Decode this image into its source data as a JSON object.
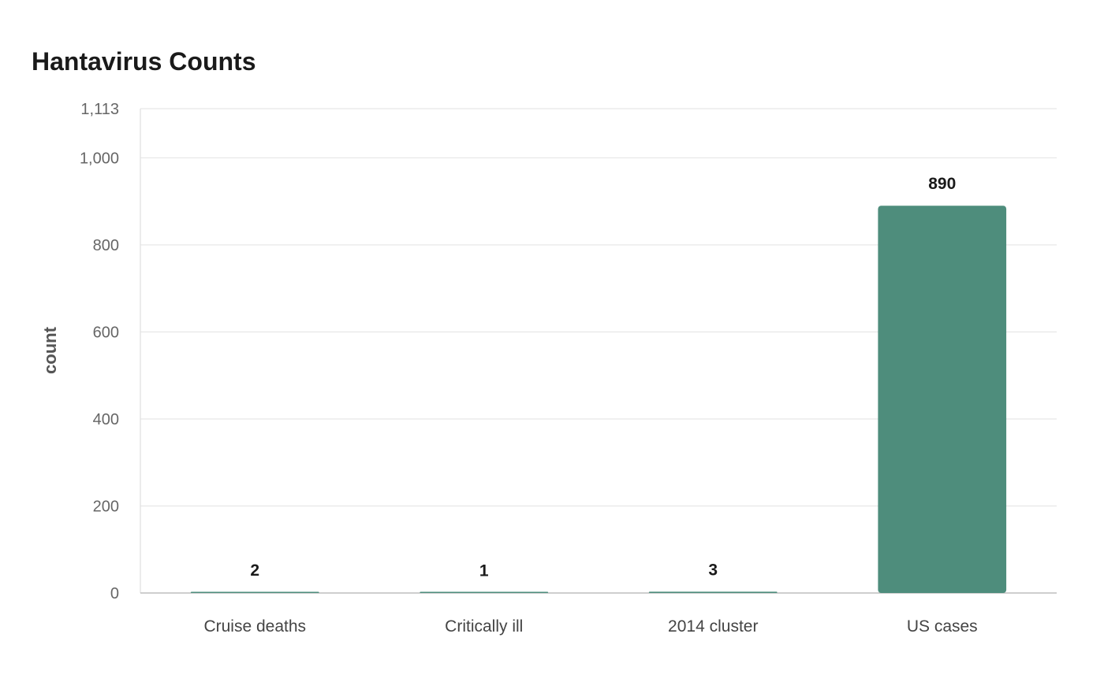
{
  "chart_data": {
    "type": "bar",
    "title": "Hantavirus Counts",
    "xlabel": "",
    "ylabel": "count",
    "categories": [
      "Cruise deaths",
      "Critically ill",
      "2014 cluster",
      "US cases"
    ],
    "values": [
      2,
      1,
      3,
      890
    ],
    "value_labels": [
      "2",
      "1",
      "3",
      "890"
    ],
    "ylim": [
      0,
      1113
    ],
    "yticks": [
      0,
      200,
      400,
      600,
      800,
      1000,
      1113
    ],
    "ytick_labels": [
      "0",
      "200",
      "400",
      "600",
      "800",
      "1,000",
      "1,113"
    ],
    "grid": true,
    "legend": "none",
    "bar_color": "#4e8d7c"
  }
}
